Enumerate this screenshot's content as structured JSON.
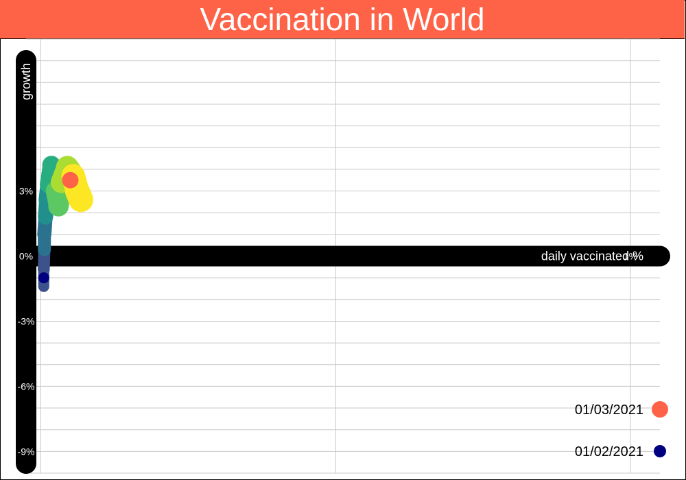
{
  "colors": {
    "title_background": "#ff6347",
    "title_text": "#ffffff",
    "axis_bar": "#000000",
    "grid": "#c8c8c8",
    "highlight_point": "#ff6347",
    "start_point": "#000080",
    "trail_palette": [
      "#3b528b",
      "#2c728e",
      "#21908d",
      "#27ad81",
      "#5cc863",
      "#aadc32",
      "#fde725"
    ]
  },
  "chart_data": {
    "type": "scatter",
    "title": "Vaccination in World",
    "xlabel": "daily vaccinated %",
    "ylabel": "growth",
    "xlim": [
      -0.025,
      1.05
    ],
    "ylim": [
      -10,
      10
    ],
    "x_ticks": [
      {
        "value": 1,
        "label": "1%"
      }
    ],
    "y_ticks": [
      {
        "value": 3,
        "label": "3%"
      },
      {
        "value": 0,
        "label": "0%"
      },
      {
        "value": -3,
        "label": "-3%"
      },
      {
        "value": -6,
        "label": "-6%"
      },
      {
        "value": -9,
        "label": "-9%"
      }
    ],
    "grid": true,
    "legend_position": "bottom-right",
    "legend": [
      {
        "label": "01/03/2021",
        "color": "#ff6347"
      },
      {
        "label": "01/02/2021",
        "color": "#000080"
      }
    ],
    "series": [
      {
        "trail": [
          {
            "x": 0.005,
            "y": -1.4
          },
          {
            "x": 0.005,
            "y": -0.6
          },
          {
            "x": 0.006,
            "y": 0.3
          },
          {
            "x": 0.006,
            "y": 1.0
          },
          {
            "x": 0.008,
            "y": 1.8
          },
          {
            "x": 0.01,
            "y": 2.6
          },
          {
            "x": 0.013,
            "y": 3.3
          },
          {
            "x": 0.018,
            "y": 4.2
          },
          {
            "x": 0.025,
            "y": 3.0
          },
          {
            "x": 0.03,
            "y": 2.3
          },
          {
            "x": 0.035,
            "y": 3.4
          },
          {
            "x": 0.045,
            "y": 4.1
          },
          {
            "x": 0.055,
            "y": 3.7
          },
          {
            "x": 0.062,
            "y": 3.0
          },
          {
            "x": 0.068,
            "y": 2.6
          }
        ],
        "start": {
          "x": 0.005,
          "y": -1.0,
          "date": "01/02/2021"
        },
        "current": {
          "x": 0.05,
          "y": 3.5,
          "date": "01/03/2021"
        }
      }
    ]
  }
}
